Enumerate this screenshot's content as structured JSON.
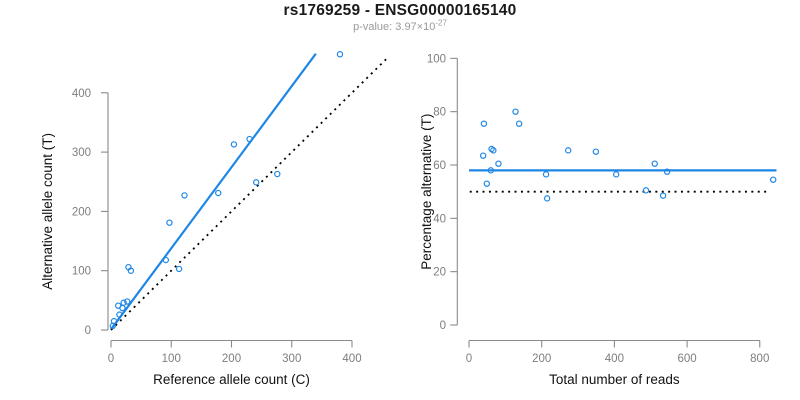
{
  "header": {
    "title": "rs1769259 - ENSG00000165140",
    "pvalue_text": "p-value: 3.97×10",
    "pvalue_exponent": "-27"
  },
  "colors": {
    "accent_blue": "#1E87E5",
    "axis_gray": "#8A8A8A",
    "tick_label_gray": "#7E7E7E",
    "axis_title_black": "#111111",
    "line_black": "#000000",
    "background": "#FFFFFF"
  },
  "chart_data": [
    {
      "type": "scatter",
      "name": "allele-counts-scatter",
      "title": "",
      "xlabel": "Reference allele count (C)",
      "ylabel": "Alternative allele count (T)",
      "xlim": [
        0,
        460
      ],
      "ylim": [
        0,
        470
      ],
      "xticks": [
        0,
        100,
        200,
        300,
        400
      ],
      "yticks": [
        0,
        100,
        200,
        300,
        400
      ],
      "grid": false,
      "legend": "none",
      "marker": "open-circle",
      "points": [
        [
          380,
          465
        ],
        [
          230,
          322
        ],
        [
          204,
          313
        ],
        [
          276,
          263
        ],
        [
          241,
          249
        ],
        [
          178,
          231
        ],
        [
          122,
          227
        ],
        [
          97,
          181
        ],
        [
          91,
          118
        ],
        [
          113,
          103
        ],
        [
          29,
          106
        ],
        [
          33,
          100
        ],
        [
          27,
          48
        ],
        [
          21,
          46
        ],
        [
          19,
          37
        ],
        [
          12,
          41
        ],
        [
          14,
          26
        ],
        [
          5,
          15
        ],
        [
          3,
          7
        ]
      ],
      "lines": [
        {
          "name": "regression-line",
          "style": "solid",
          "color_key": "accent_blue",
          "x1": 0,
          "y1": 1,
          "x2": 340,
          "y2": 466
        },
        {
          "name": "identity-line",
          "style": "dotted",
          "color_key": "line_black",
          "x1": 0,
          "y1": 0,
          "x2": 458,
          "y2": 458
        }
      ]
    },
    {
      "type": "scatter",
      "name": "percentage-vs-reads-scatter",
      "title": "",
      "xlabel": "Total number of reads",
      "ylabel": "Percentage alternative (T)",
      "xlim": [
        0,
        850
      ],
      "ylim": [
        0,
        100
      ],
      "xticks": [
        0,
        200,
        400,
        600,
        800
      ],
      "yticks": [
        0,
        20,
        40,
        60,
        80,
        100
      ],
      "grid": false,
      "legend": "none",
      "marker": "open-circle",
      "points": [
        [
          41,
          75.5
        ],
        [
          128,
          80
        ],
        [
          138,
          75.5
        ],
        [
          39,
          63.5
        ],
        [
          62,
          66
        ],
        [
          67,
          65.5
        ],
        [
          81,
          60.5
        ],
        [
          60,
          58
        ],
        [
          49,
          53
        ],
        [
          273,
          65.5
        ],
        [
          349,
          65
        ],
        [
          212,
          56.5
        ],
        [
          215,
          47.5
        ],
        [
          405,
          56.5
        ],
        [
          511,
          60.5
        ],
        [
          545,
          57.5
        ],
        [
          487,
          50.5
        ],
        [
          534,
          48.5
        ],
        [
          837,
          54.5
        ]
      ],
      "lines": [
        {
          "name": "mean-percentage-line",
          "style": "solid",
          "color_key": "accent_blue",
          "x1": 0,
          "y1": 58,
          "x2": 846,
          "y2": 58
        },
        {
          "name": "fifty-percent-line",
          "style": "dotted",
          "color_key": "line_black",
          "x1": 2,
          "y1": 50,
          "x2": 822,
          "y2": 50
        }
      ]
    }
  ]
}
